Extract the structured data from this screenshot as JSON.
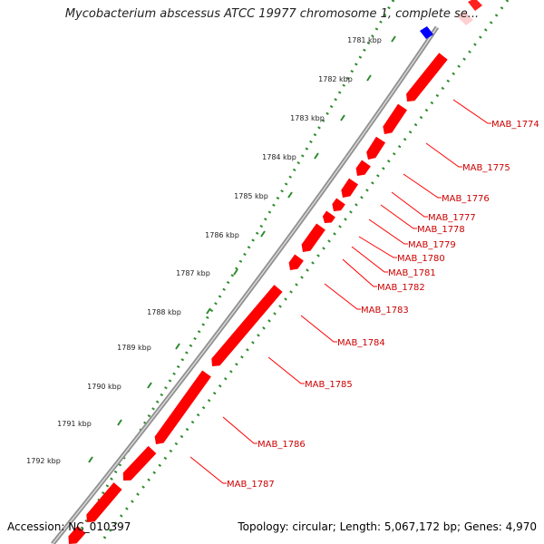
{
  "title": "Mycobacterium abscessus ATCC 19977 chromosome 1, complete se...",
  "accession": "Accession: NC_010397",
  "topology": "Topology: circular; Length: 5,067,172 bp; Genes: 4,970",
  "colors": {
    "gene": "#ff0000",
    "gene_label": "#cc0000",
    "blue_feature": "#0000ff",
    "backbone": "#808080",
    "dotted_track": "#2e8b2e"
  },
  "ticks": [
    {
      "label": "1781 kbp"
    },
    {
      "label": "1782 kbp"
    },
    {
      "label": "1783 kbp"
    },
    {
      "label": "1784 kbp"
    },
    {
      "label": "1785 kbp"
    },
    {
      "label": "1786 kbp"
    },
    {
      "label": "1787 kbp"
    },
    {
      "label": "1788 kbp"
    },
    {
      "label": "1789 kbp"
    },
    {
      "label": "1790 kbp"
    },
    {
      "label": "1791 kbp"
    },
    {
      "label": "1792 kbp"
    }
  ],
  "genes": [
    {
      "label": "MAB_1774"
    },
    {
      "label": "MAB_1775"
    },
    {
      "label": "MAB_1776"
    },
    {
      "label": "MAB_1777"
    },
    {
      "label": "MAB_1778"
    },
    {
      "label": "MAB_1779"
    },
    {
      "label": "MAB_1780"
    },
    {
      "label": "MAB_1781"
    },
    {
      "label": "MAB_1782"
    },
    {
      "label": "MAB_1783"
    },
    {
      "label": "MAB_1784"
    },
    {
      "label": "MAB_1785"
    },
    {
      "label": "MAB_1786"
    },
    {
      "label": "MAB_1787"
    }
  ]
}
